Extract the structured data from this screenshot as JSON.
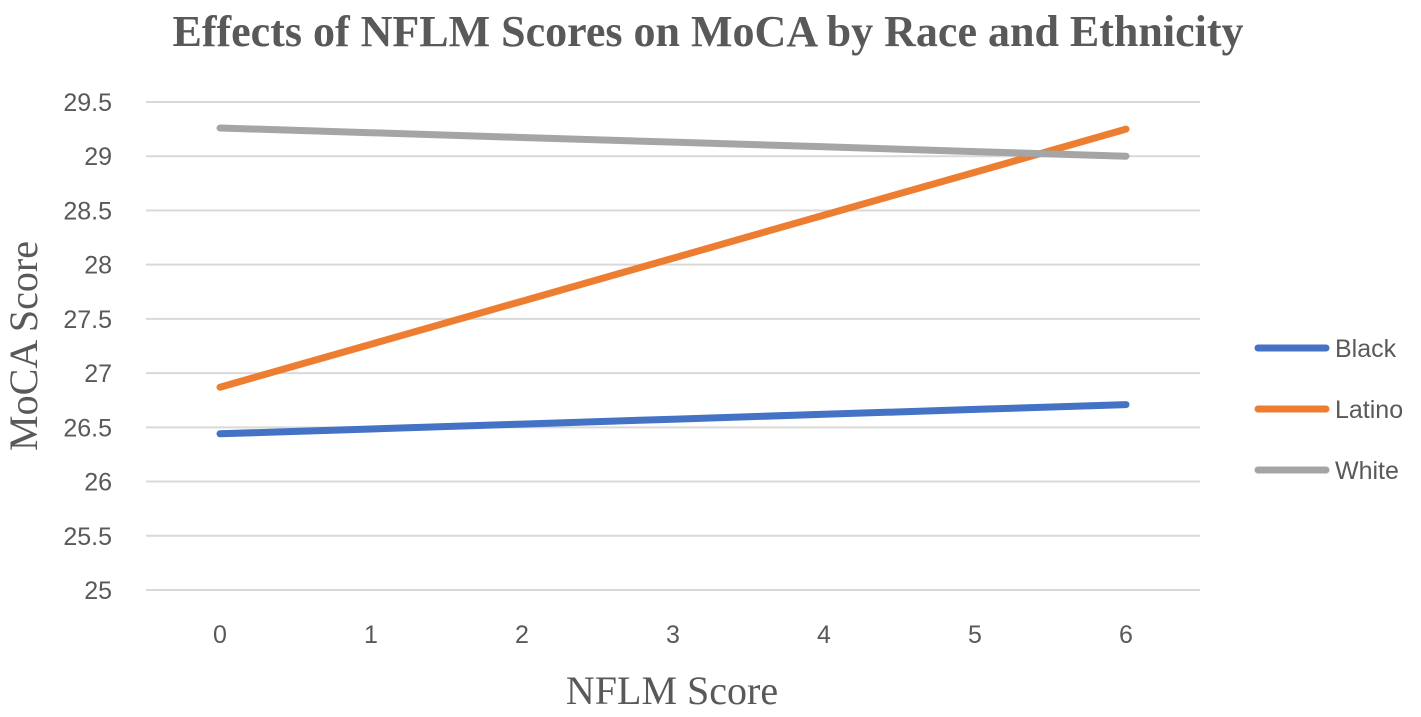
{
  "chart_data": {
    "type": "line",
    "title": "Effects of NFLM Scores on MoCA by Race and Ethnicity",
    "xlabel": "NFLM Score",
    "ylabel": "MoCA Score",
    "x": [
      0,
      1,
      2,
      3,
      4,
      5,
      6
    ],
    "x_tick_labels": [
      "0",
      "1",
      "2",
      "3",
      "4",
      "5",
      "6"
    ],
    "ylim": [
      25,
      29.5
    ],
    "y_ticks": [
      25,
      25.5,
      26,
      26.5,
      27,
      27.5,
      28,
      28.5,
      29,
      29.5
    ],
    "y_tick_labels": [
      "25",
      "25.5",
      "26",
      "26.5",
      "27",
      "27.5",
      "28",
      "28.5",
      "29",
      "29.5"
    ],
    "grid": true,
    "legend_position": "right",
    "series": [
      {
        "name": "Black",
        "color": "#4472c4",
        "values": [
          26.44,
          26.485,
          26.53,
          26.575,
          26.62,
          26.665,
          26.71
        ]
      },
      {
        "name": "Latino",
        "color": "#ed7d31",
        "values": [
          26.87,
          27.267,
          27.663,
          28.06,
          28.457,
          28.853,
          29.25
        ]
      },
      {
        "name": "White",
        "color": "#a5a5a5",
        "values": [
          29.26,
          29.217,
          29.173,
          29.13,
          29.087,
          29.043,
          29.0
        ]
      }
    ]
  }
}
